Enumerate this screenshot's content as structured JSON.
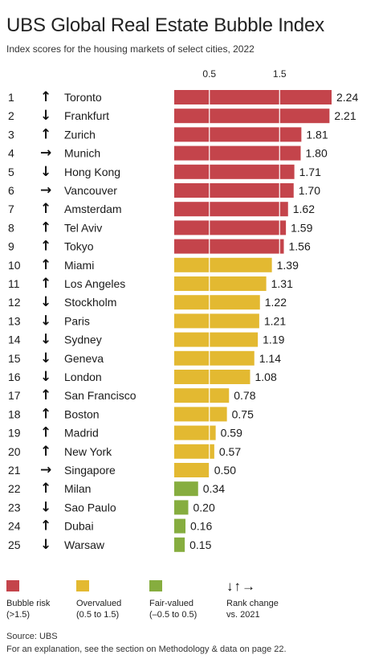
{
  "header": {
    "title": "UBS Global Real Estate Bubble Index",
    "subtitle": "Index scores for the housing markets of select cities, 2022"
  },
  "colors": {
    "bubble": "#c4444b",
    "overvalued": "#e3b931",
    "fair": "#86ad3f"
  },
  "chart_data": {
    "type": "bar",
    "orientation": "horizontal",
    "title": "UBS Global Real Estate Bubble Index",
    "subtitle": "Index scores for the housing markets of select cities, 2022",
    "tick_labels": [
      "0.5",
      "1.5"
    ],
    "tick_values": [
      0.5,
      1.5
    ],
    "xlim": [
      0,
      2.24
    ],
    "grid": true,
    "categories": [
      "Toronto",
      "Frankfurt",
      "Zurich",
      "Munich",
      "Hong Kong",
      "Vancouver",
      "Amsterdam",
      "Tel Aviv",
      "Tokyo",
      "Miami",
      "Los Angeles",
      "Stockholm",
      "Paris",
      "Sydney",
      "Geneva",
      "London",
      "San Francisco",
      "Boston",
      "Madrid",
      "New York",
      "Singapore",
      "Milan",
      "Sao Paulo",
      "Dubai",
      "Warsaw"
    ],
    "values": [
      2.24,
      2.21,
      1.81,
      1.8,
      1.71,
      1.7,
      1.62,
      1.59,
      1.56,
      1.39,
      1.31,
      1.22,
      1.21,
      1.19,
      1.14,
      1.08,
      0.78,
      0.75,
      0.59,
      0.57,
      0.5,
      0.34,
      0.2,
      0.16,
      0.15
    ],
    "value_labels": [
      "2.24",
      "2.21",
      "1.81",
      "1.80",
      "1.71",
      "1.70",
      "1.62",
      "1.59",
      "1.56",
      "1.39",
      "1.31",
      "1.22",
      "1.21",
      "1.19",
      "1.14",
      "1.08",
      "0.78",
      "0.75",
      "0.59",
      "0.57",
      "0.50",
      "0.34",
      "0.20",
      "0.16",
      "0.15"
    ],
    "ranks": [
      "1",
      "2",
      "3",
      "4",
      "5",
      "6",
      "7",
      "8",
      "9",
      "10",
      "11",
      "12",
      "13",
      "14",
      "15",
      "16",
      "17",
      "18",
      "19",
      "20",
      "21",
      "22",
      "23",
      "24",
      "25"
    ],
    "rank_change": [
      "up",
      "down",
      "up",
      "flat",
      "down",
      "flat",
      "up",
      "up",
      "up",
      "up",
      "up",
      "down",
      "down",
      "down",
      "down",
      "down",
      "up",
      "up",
      "up",
      "up",
      "flat",
      "up",
      "down",
      "up",
      "down"
    ],
    "category": [
      "bubble",
      "bubble",
      "bubble",
      "bubble",
      "bubble",
      "bubble",
      "bubble",
      "bubble",
      "bubble",
      "overvalued",
      "overvalued",
      "overvalued",
      "overvalued",
      "overvalued",
      "overvalued",
      "overvalued",
      "overvalued",
      "overvalued",
      "overvalued",
      "overvalued",
      "overvalued",
      "fair",
      "fair",
      "fair",
      "fair"
    ]
  },
  "legend": {
    "bubble_label": "Bubble risk",
    "bubble_range": "(>1.5)",
    "overvalued_label": "Overvalued",
    "overvalued_range": "(0.5 to 1.5)",
    "fair_label": "Fair-valued",
    "fair_range": "(–0.5 to 0.5)",
    "arrows": "↓↑→",
    "rank_label": "Rank change",
    "rank_sub": "vs. 2021"
  },
  "footer": {
    "source": "Source: UBS",
    "note": "For an explanation, see the section on Methodology & data on page 22."
  }
}
